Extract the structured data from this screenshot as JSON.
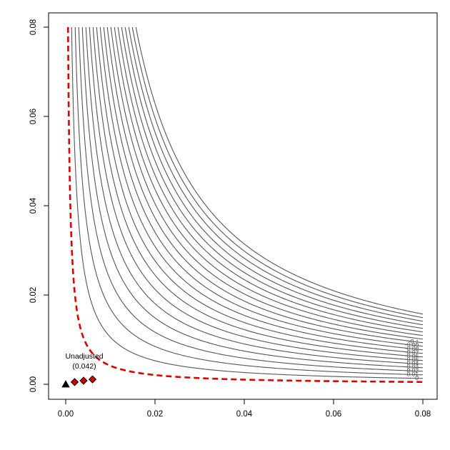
{
  "chart_data": {
    "type": "contour",
    "title": "",
    "xlabel": "",
    "ylabel": "",
    "xlim": [
      0,
      0.08
    ],
    "ylim": [
      0,
      0.08
    ],
    "x_ticks": [
      "0.00",
      "0.02",
      "0.04",
      "0.06",
      "0.08"
    ],
    "y_ticks": [
      "0.00",
      "0.02",
      "0.04",
      "0.06",
      "0.08"
    ],
    "grid": false,
    "contour_levels": [
      "0.04",
      "0.03",
      "0.02",
      "0.01",
      "0",
      "-0.01",
      "-0.02",
      "-0.03",
      "-0.04",
      "-0.05",
      "-0.06",
      "-0.07",
      "-0.08",
      "-0.09",
      "-0.1"
    ],
    "highlighted_level": "0",
    "highlight_color": "#dd0000",
    "unlabeled_levels": [
      -0.11,
      -0.12,
      -0.13,
      -0.14,
      -0.15,
      -0.16,
      -0.17,
      -0.18,
      -0.19
    ],
    "points": [
      {
        "x": 0.0,
        "y": 0.0,
        "marker": "triangle",
        "color": "#000000"
      },
      {
        "x": 0.002,
        "y": 0.0005,
        "marker": "diamond",
        "color": "#cc0000"
      },
      {
        "x": 0.004,
        "y": 0.0008,
        "marker": "diamond",
        "color": "#cc0000"
      },
      {
        "x": 0.006,
        "y": 0.0011,
        "marker": "diamond",
        "color": "#cc0000"
      }
    ],
    "annotation": {
      "line1": "Unadjusted",
      "line2": "(0.042)"
    }
  }
}
